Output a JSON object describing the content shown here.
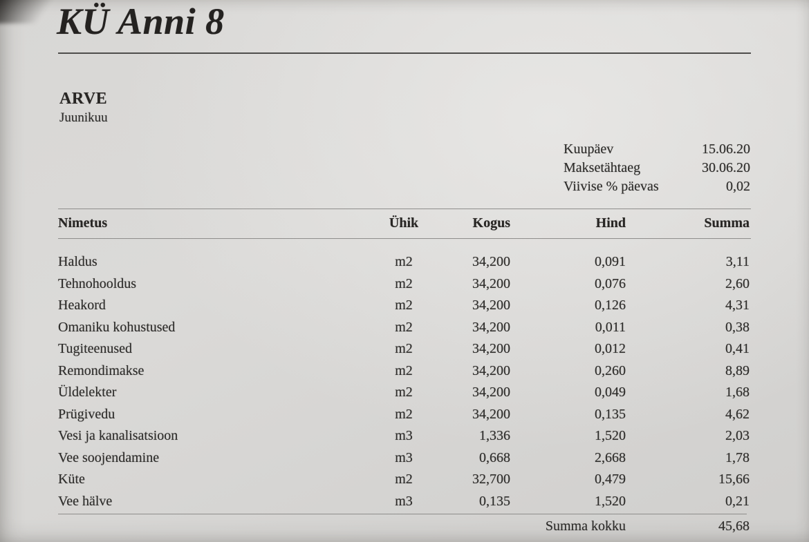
{
  "document": {
    "title": "KÜ Anni 8",
    "type_label": "ARVE",
    "period": "Juunikuu",
    "meta": [
      {
        "label": "Kuupäev",
        "value": "15.06.20"
      },
      {
        "label": "Maksetähtaeg",
        "value": "30.06.20"
      },
      {
        "label": "Viivise % päevas",
        "value": "0,02"
      }
    ],
    "table": {
      "headers": {
        "name": "Nimetus",
        "unit": "Ühik",
        "qty": "Kogus",
        "price": "Hind",
        "sum": "Summa"
      },
      "rows": [
        {
          "name": "Haldus",
          "unit": "m2",
          "qty": "34,200",
          "price": "0,091",
          "sum": "3,11"
        },
        {
          "name": "Tehnohooldus",
          "unit": "m2",
          "qty": "34,200",
          "price": "0,076",
          "sum": "2,60"
        },
        {
          "name": "Heakord",
          "unit": "m2",
          "qty": "34,200",
          "price": "0,126",
          "sum": "4,31"
        },
        {
          "name": "Omaniku kohustused",
          "unit": "m2",
          "qty": "34,200",
          "price": "0,011",
          "sum": "0,38"
        },
        {
          "name": "Tugiteenused",
          "unit": "m2",
          "qty": "34,200",
          "price": "0,012",
          "sum": "0,41"
        },
        {
          "name": "Remondimakse",
          "unit": "m2",
          "qty": "34,200",
          "price": "0,260",
          "sum": "8,89"
        },
        {
          "name": "Üldelekter",
          "unit": "m2",
          "qty": "34,200",
          "price": "0,049",
          "sum": "1,68"
        },
        {
          "name": "Prügivedu",
          "unit": "m2",
          "qty": "34,200",
          "price": "0,135",
          "sum": "4,62"
        },
        {
          "name": "Vesi ja kanalisatsioon",
          "unit": "m3",
          "qty": "1,336",
          "price": "1,520",
          "sum": "2,03"
        },
        {
          "name": "Vee soojendamine",
          "unit": "m3",
          "qty": "0,668",
          "price": "2,668",
          "sum": "1,78"
        },
        {
          "name": "Küte",
          "unit": "m2",
          "qty": "32,700",
          "price": "0,479",
          "sum": "15,66"
        },
        {
          "name": "Vee hälve",
          "unit": "m3",
          "qty": "0,135",
          "price": "1,520",
          "sum": "0,21"
        }
      ],
      "total_label": "Summa kokku",
      "total_value": "45,68"
    }
  },
  "colors": {
    "paper": "#d8d7d5",
    "ink": "#2e2d2b",
    "rule_dark": "#4e4d4b",
    "rule_light": "#8e8d8b"
  }
}
